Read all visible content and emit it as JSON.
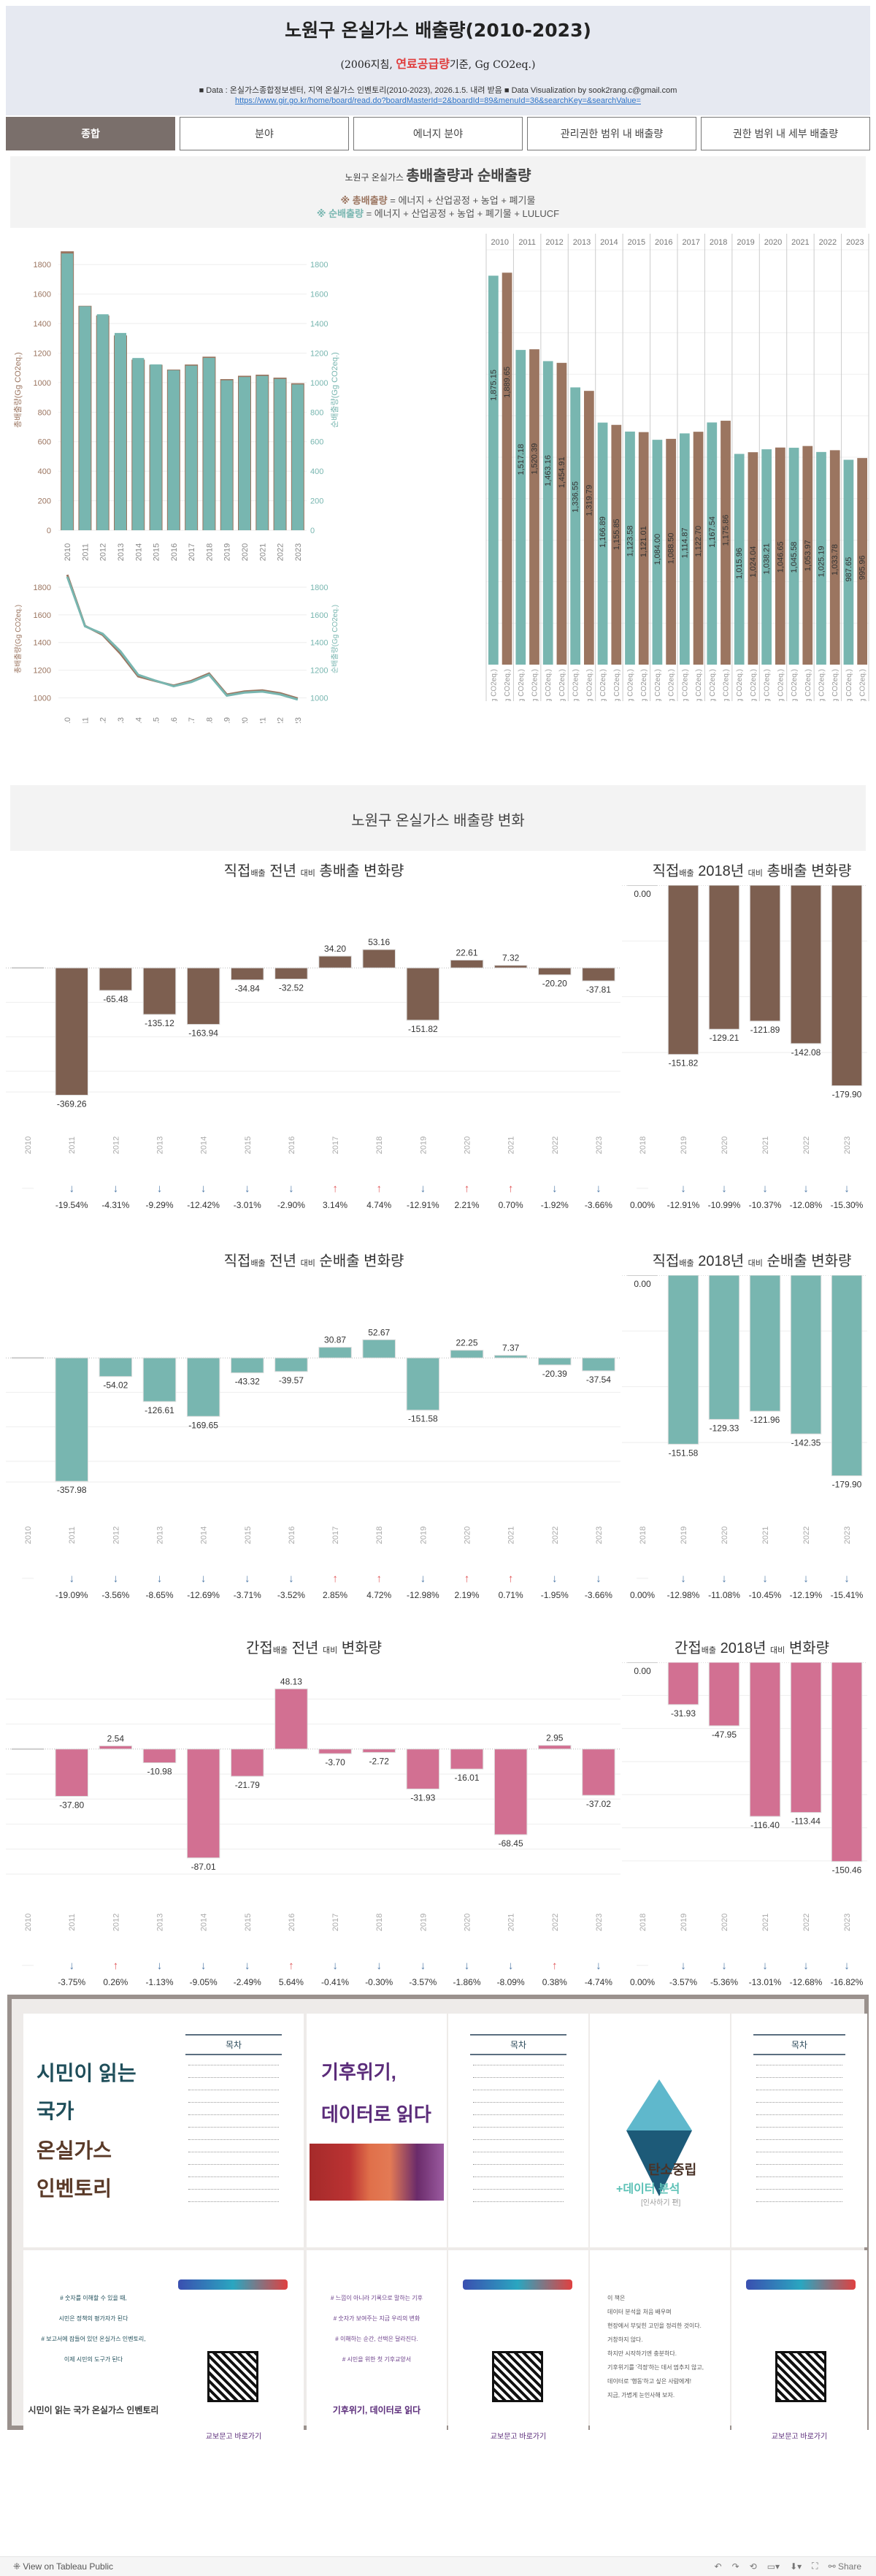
{
  "header": {
    "title": "노원구 온실가스 배출량(2010-2023)",
    "subtitle_pre": "(2006지침, ",
    "subtitle_red": "연료공급량",
    "subtitle_post": "기준, Gg CO2eq.)",
    "source": "■ Data : 온실가스종합정보센터, 지역 온실가스 인벤토리(2010-2023), 2026.1.5. 내려 받음   ■ Data Visualization by sook2rang.c@gmail.com",
    "source_link": "https://www.gir.go.kr/home/board/read.do?boardMasterId=2&boardId=89&menuId=36&searchKey=&searchValue="
  },
  "tabs": [
    {
      "label": "종합",
      "active": true
    },
    {
      "label": "분야",
      "active": false
    },
    {
      "label": "에너지 분야",
      "active": false
    },
    {
      "label": "관리권한 범위 내 배출량",
      "active": false
    },
    {
      "label": "권한 범위 내 세부 배출량",
      "active": false
    }
  ],
  "section1": {
    "title_small": "노원구 온실가스 ",
    "title_big": "총배출량과 순배출량",
    "legend_gross_label": "※ 총배출량",
    "legend_gross_formula": " = 에너지 + 산업공정 + 농업 + 폐기물",
    "legend_net_label": "※ 순배출량",
    "legend_net_formula": " = 에너지 + 산업공정 + 농업 + 폐기물 + LULUCF"
  },
  "section2": {
    "title": "노원구 온실가스 배출량 변화"
  },
  "colors": {
    "gross": "#9b7560",
    "net": "#78b6b0",
    "gross_dark": "#7d5f50",
    "indirect": "#d27092",
    "up": "#e15759",
    "down": "#4e79a7"
  },
  "chart_data": [
    {
      "id": "overview-bars",
      "type": "bar",
      "title": "총배출량과 순배출량",
      "categories": [
        "2010",
        "2011",
        "2012",
        "2013",
        "2014",
        "2015",
        "2016",
        "2017",
        "2018",
        "2019",
        "2020",
        "2021",
        "2022",
        "2023"
      ],
      "series": [
        {
          "name": "총배출량",
          "values": [
            1889.65,
            1520.39,
            1454.91,
            1319.79,
            1155.85,
            1121.01,
            1088.5,
            1122.7,
            1175.86,
            1024.04,
            1046.65,
            1053.97,
            1033.78,
            995.96
          ]
        },
        {
          "name": "순배출량",
          "values": [
            1875.15,
            1517.18,
            1463.16,
            1336.55,
            1166.89,
            1123.58,
            1084.0,
            1114.87,
            1167.54,
            1015.96,
            1038.21,
            1045.58,
            1025.19,
            987.65
          ]
        }
      ],
      "ylabel_left": "총배출량(Gg CO2eq.)",
      "ylabel_right": "순배출량(Gg CO2eq.)",
      "yticks": [
        0,
        200,
        400,
        600,
        800,
        1000,
        1200,
        1400,
        1600,
        1800
      ],
      "ylim": [
        0,
        1900
      ]
    },
    {
      "id": "overview-lines",
      "type": "line",
      "categories": [
        "2010",
        "2011",
        "2012",
        "2013",
        "2014",
        "2015",
        "2016",
        "2017",
        "2018",
        "2019",
        "2020",
        "2021",
        "2022",
        "2023"
      ],
      "ylabel_left": "총배출량(Gg CO2eq.)",
      "ylabel_right": "순배출량(Gg CO2eq.)",
      "yticks": [
        1000,
        1200,
        1400,
        1600,
        1800
      ],
      "ylim": [
        950,
        1900
      ]
    },
    {
      "id": "detail-bars",
      "type": "bar",
      "categories": [
        "2010",
        "2011",
        "2012",
        "2013",
        "2014",
        "2015",
        "2016",
        "2017",
        "2018",
        "2019",
        "2020",
        "2021",
        "2022",
        "2023"
      ],
      "row_labels": [
        "순배출량(Gg CO2eq.)",
        "총배출량(Gg CO2eq.)"
      ],
      "ylim": [
        0,
        2000
      ]
    },
    {
      "id": "gross-yoy",
      "type": "bar",
      "title_a": "직접",
      "title_b": "배출",
      "title_c": " 전년 ",
      "title_d": "대비",
      "title_e": " 총배출 변화량",
      "categories": [
        "2010",
        "2011",
        "2012",
        "2013",
        "2014",
        "2015",
        "2016",
        "2017",
        "2018",
        "2019",
        "2020",
        "2021",
        "2022",
        "2023"
      ],
      "values": [
        0,
        -369.26,
        -65.48,
        -135.12,
        -163.94,
        -34.84,
        -32.52,
        34.2,
        53.16,
        -151.82,
        22.61,
        7.32,
        -20.2,
        -37.81
      ],
      "labels": [
        "",
        "-369.26",
        "-65.48",
        "-135.12",
        "-163.94",
        "-34.84",
        "-32.52",
        "34.20",
        "53.16",
        "-151.82",
        "22.61",
        "7.32",
        "-20.20",
        "-37.81"
      ],
      "pct": [
        "",
        "-19.54%",
        "-4.31%",
        "-9.29%",
        "-12.42%",
        "-3.01%",
        "-2.90%",
        "3.14%",
        "4.74%",
        "-12.91%",
        "2.21%",
        "0.70%",
        "-1.92%",
        "-3.66%"
      ],
      "ylim": [
        -400,
        100
      ],
      "color": "#7d5f50"
    },
    {
      "id": "gross-2018",
      "type": "bar",
      "title_a": "직접",
      "title_b": "배출",
      "title_c": " 2018년 ",
      "title_d": "대비",
      "title_e": " 총배출 변화량",
      "categories": [
        "2018",
        "2019",
        "2020",
        "2021",
        "2022",
        "2023"
      ],
      "values": [
        0,
        -151.82,
        -129.21,
        -121.89,
        -142.08,
        -179.9
      ],
      "labels": [
        "0.00",
        "-151.82",
        "-129.21",
        "-121.89",
        "-142.08",
        "-179.90"
      ],
      "pct": [
        "0.00%",
        "-12.91%",
        "-10.99%",
        "-10.37%",
        "-12.08%",
        "-15.30%"
      ],
      "ylim": [
        -190,
        0
      ],
      "color": "#7d5f50"
    },
    {
      "id": "net-yoy",
      "type": "bar",
      "title_a": "직접",
      "title_b": "배출",
      "title_c": " 전년 ",
      "title_d": "대비",
      "title_e": " 순배출 변화량",
      "categories": [
        "2010",
        "2011",
        "2012",
        "2013",
        "2014",
        "2015",
        "2016",
        "2017",
        "2018",
        "2019",
        "2020",
        "2021",
        "2022",
        "2023"
      ],
      "values": [
        0,
        -357.98,
        -54.02,
        -126.61,
        -169.65,
        -43.32,
        -39.57,
        30.87,
        52.67,
        -151.58,
        22.25,
        7.37,
        -20.39,
        -37.54
      ],
      "labels": [
        "",
        "-357.98",
        "-54.02",
        "-126.61",
        "-169.65",
        "-43.32",
        "-39.57",
        "30.87",
        "52.67",
        "-151.58",
        "22.25",
        "7.37",
        "-20.39",
        "-37.54"
      ],
      "pct": [
        "",
        "-19.09%",
        "-3.56%",
        "-8.65%",
        "-12.69%",
        "-3.71%",
        "-3.52%",
        "2.85%",
        "4.72%",
        "-12.98%",
        "2.19%",
        "0.71%",
        "-1.95%",
        "-3.66%"
      ],
      "ylim": [
        -400,
        100
      ],
      "color": "#78b6b0"
    },
    {
      "id": "net-2018",
      "type": "bar",
      "title_a": "직접",
      "title_b": "배출",
      "title_c": " 2018년 ",
      "title_d": "대비",
      "title_e": " 순배출 변화량",
      "categories": [
        "2018",
        "2019",
        "2020",
        "2021",
        "2022",
        "2023"
      ],
      "values": [
        0,
        -151.58,
        -129.33,
        -121.96,
        -142.35,
        -179.9
      ],
      "labels": [
        "0.00",
        "-151.58",
        "-129.33",
        "-121.96",
        "-142.35",
        "-179.90"
      ],
      "pct": [
        "0.00%",
        "-12.98%",
        "-11.08%",
        "-10.45%",
        "-12.19%",
        "-15.41%"
      ],
      "ylim": [
        -190,
        0
      ],
      "color": "#78b6b0"
    },
    {
      "id": "indirect-yoy",
      "type": "bar",
      "title_a": "간접",
      "title_b": "배출",
      "title_c": " 전년 ",
      "title_d": "대비",
      "title_e": " 변화량",
      "categories": [
        "2010",
        "2011",
        "2012",
        "2013",
        "2014",
        "2015",
        "2016",
        "2017",
        "2018",
        "2019",
        "2020",
        "2021",
        "2022",
        "2023"
      ],
      "values": [
        0,
        -37.8,
        2.54,
        -10.98,
        -87.01,
        -21.79,
        48.13,
        -3.7,
        -2.72,
        -31.93,
        -16.01,
        -68.45,
        2.95,
        -37.02
      ],
      "labels": [
        "",
        "-37.80",
        "2.54",
        "-10.98",
        "-87.01",
        "-21.79",
        "48.13",
        "-3.70",
        "-2.72",
        "-31.93",
        "-16.01",
        "-68.45",
        "2.95",
        "-37.02"
      ],
      "pct": [
        "",
        "-3.75%",
        "0.26%",
        "-1.13%",
        "-9.05%",
        "-2.49%",
        "5.64%",
        "-0.41%",
        "-0.30%",
        "-3.57%",
        "-1.86%",
        "-8.09%",
        "0.38%",
        "-4.74%"
      ],
      "ylim": [
        -100,
        60
      ],
      "color": "#d27092"
    },
    {
      "id": "indirect-2018",
      "type": "bar",
      "title_a": "간접",
      "title_b": "배출",
      "title_c": " 2018년 ",
      "title_d": "대비",
      "title_e": " 변화량",
      "categories": [
        "2018",
        "2019",
        "2020",
        "2021",
        "2022",
        "2023"
      ],
      "values": [
        0,
        -31.93,
        -47.95,
        -116.4,
        -113.44,
        -150.46
      ],
      "labels": [
        "0.00",
        "-31.93",
        "-47.95",
        "-116.40",
        "-113.44",
        "-150.46"
      ],
      "pct": [
        "0.00%",
        "-3.57%",
        "-5.36%",
        "-13.01%",
        "-12.68%",
        "-16.82%"
      ],
      "ylim": [
        -160,
        0
      ],
      "color": "#d27092"
    }
  ],
  "books": [
    {
      "kind": "cover",
      "line1": "시민이 읽는",
      "line2": "국가",
      "line3": "온실가스",
      "line4": "인벤토리"
    },
    {
      "kind": "toc",
      "heading": "목차"
    },
    {
      "kind": "cover2",
      "line1": "기후위기,",
      "line2": "데이터로 ",
      "line2b": "읽다"
    },
    {
      "kind": "toc",
      "heading": "목차"
    },
    {
      "kind": "cover3",
      "line1": "탄소중립",
      "line2": "+데이터 분석",
      "line3": "[인사하기 편]"
    },
    {
      "kind": "toc2",
      "heading": "목차"
    },
    {
      "kind": "back",
      "text": "시민이 읽는 국가 온실가스 인벤토리",
      "lines": [
        "# 숫자를 이해할 수 있을 때,",
        "시민은 정책의 평가자가 된다",
        "# 보고서에 잠들어 있던 온실가스 인벤토리,",
        "이제 시민의 도구가 된다"
      ]
    },
    {
      "kind": "qr",
      "caption": "교보문고 바로가기"
    },
    {
      "kind": "back2",
      "text": "기후위기, 데이터로 읽다",
      "lines": [
        "# 느낌이 아니라 기록으로 말하는 기후",
        "# 숫자가 보여주는 지금 우리의 변화",
        "# 이해하는 순간, 선택은 달라진다.",
        "# 시민을 위한 첫 기후교양서"
      ]
    },
    {
      "kind": "qr",
      "caption": "교보문고 바로가기"
    },
    {
      "kind": "note",
      "lines": [
        "이 책은",
        "데이터 분석을 처음 배우며",
        "현장에서 부딪힌 고민을 정리한 것이다.",
        "거창하지 않다.",
        "하지만 시작하기엔 충분하다.",
        "기후위기를 '걱정'하는 데서 멈추지 않고,",
        "데이터로 '행동'하고 싶은 사람에게!",
        "지금, 가볍게 눈인사해 보자."
      ]
    },
    {
      "kind": "qr",
      "caption": "교보문고 바로가기"
    }
  ],
  "footer": {
    "view_label": "View on Tableau Public",
    "share_label": "Share"
  }
}
